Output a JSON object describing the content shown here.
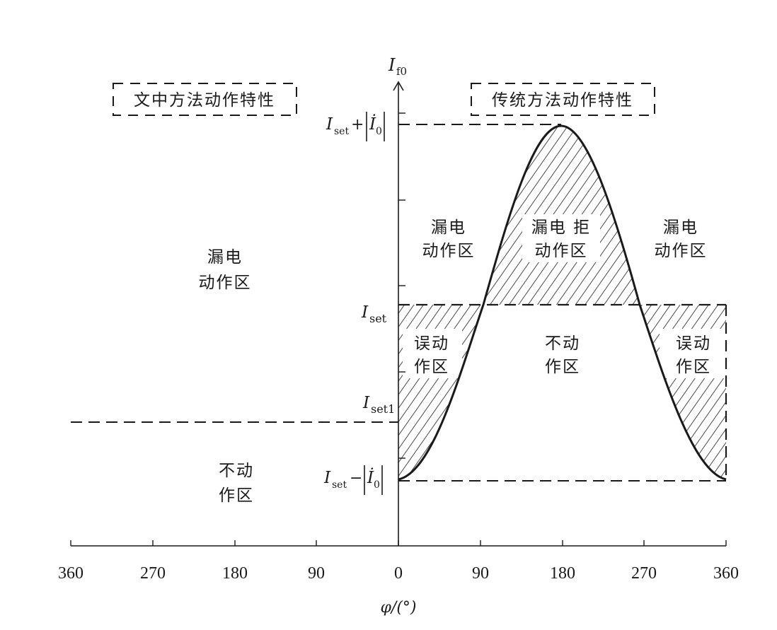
{
  "legend": {
    "left_label": "文中方法动作特性",
    "right_label": "传统方法动作特性"
  },
  "y_axis": {
    "label_main": "I",
    "label_sub": "f0",
    "labels": {
      "top_I": "I",
      "top_sub": "set",
      "top_plus": "+",
      "top_Idot": "İ",
      "top_zero": "0",
      "set_I": "I",
      "set_sub": "set",
      "set1_I": "I",
      "set1_sub": "set1",
      "bot_I": "I",
      "bot_sub": "set",
      "bot_minus": "−",
      "bot_Idot": "İ",
      "bot_zero": "0"
    }
  },
  "x_axis": {
    "label": "φ/(°)",
    "left_ticks": [
      "360",
      "270",
      "180",
      "90"
    ],
    "right_ticks": [
      "0",
      "90",
      "180",
      "270",
      "360"
    ]
  },
  "regions": {
    "left_leak_l1": "漏电",
    "left_leak_l2": "动作区",
    "left_no_l1": "不动",
    "left_no_l2": "作区",
    "r_leak1_l1": "漏电",
    "r_leak1_l2": "动作区",
    "r_reject_l1": "漏电 拒",
    "r_reject_l2": "动作区",
    "r_leak2_l1": "漏电",
    "r_leak2_l2": "动作区",
    "r_mis1_l1": "误动",
    "r_mis1_l2": "作区",
    "r_no_l1": "不动",
    "r_no_l2": "作区",
    "r_mis2_l1": "误动",
    "r_mis2_l2": "作区"
  },
  "colors": {
    "ink": "#1a1a1a",
    "background": "#ffffff"
  }
}
